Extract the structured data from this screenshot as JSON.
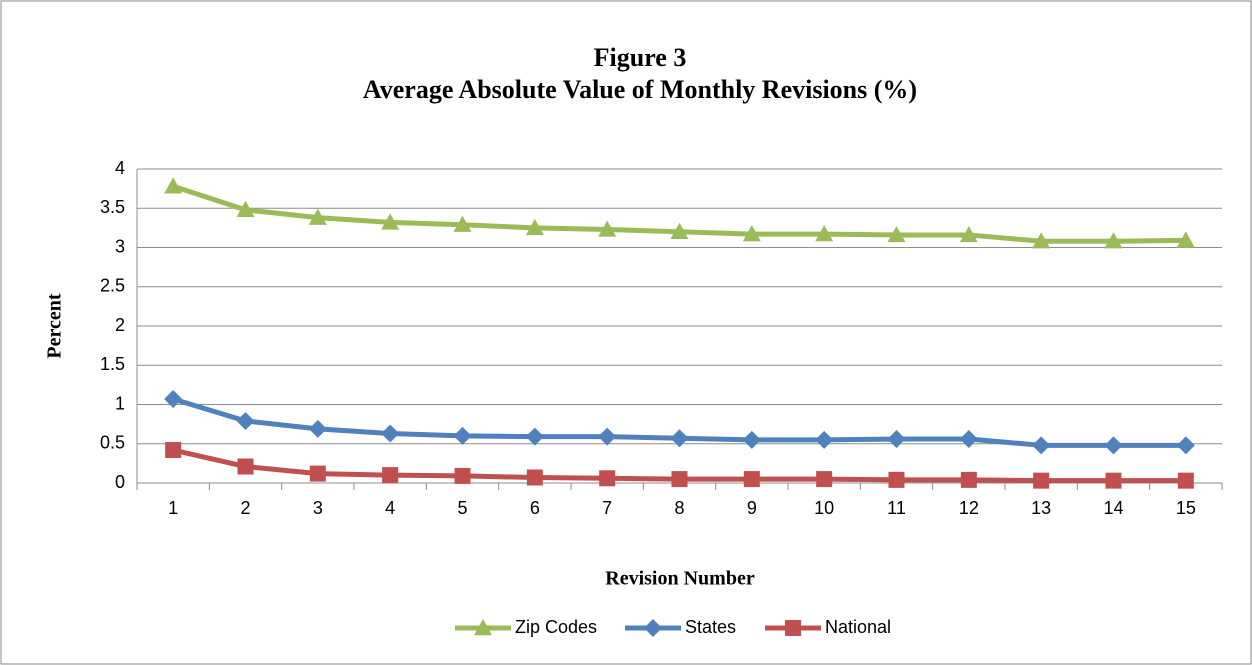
{
  "chart_data": {
    "type": "line",
    "title": "Figure 3",
    "subtitle": "Average Absolute Value of Monthly Revisions (%)",
    "y_label": "Percent",
    "x_label": "Revision Number",
    "categories": [
      "1",
      "2",
      "3",
      "4",
      "5",
      "6",
      "7",
      "8",
      "9",
      "10",
      "11",
      "12",
      "13",
      "14",
      "15"
    ],
    "series": [
      {
        "name": "Zip Codes",
        "color": "#9bbb59",
        "marker": "triangle",
        "values": [
          3.78,
          3.48,
          3.38,
          3.32,
          3.29,
          3.25,
          3.23,
          3.2,
          3.17,
          3.17,
          3.16,
          3.16,
          3.08,
          3.08,
          3.09
        ]
      },
      {
        "name": "States",
        "color": "#4f81bd",
        "marker": "diamond",
        "values": [
          1.07,
          0.79,
          0.69,
          0.63,
          0.6,
          0.59,
          0.59,
          0.57,
          0.55,
          0.55,
          0.56,
          0.56,
          0.48,
          0.48,
          0.48
        ]
      },
      {
        "name": "National",
        "color": "#c0504d",
        "marker": "square",
        "values": [
          0.42,
          0.21,
          0.12,
          0.1,
          0.09,
          0.07,
          0.06,
          0.05,
          0.05,
          0.05,
          0.04,
          0.04,
          0.03,
          0.03,
          0.03
        ]
      }
    ],
    "ylim": [
      0,
      4
    ],
    "yticks": [
      0,
      0.5,
      1,
      1.5,
      2,
      2.5,
      3,
      3.5,
      4
    ],
    "grid": true,
    "legend": "bottom"
  }
}
